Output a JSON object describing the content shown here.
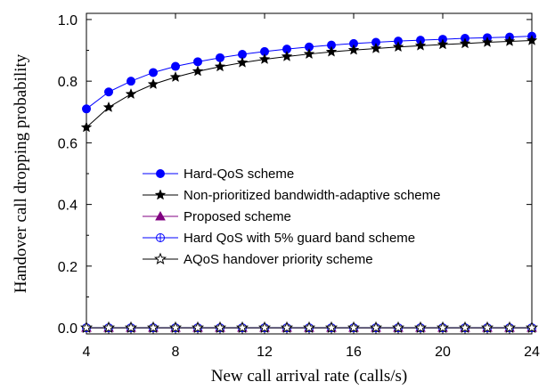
{
  "chart_data": {
    "type": "line",
    "xlabel": "New call arrival rate (calls/s)",
    "ylabel": "Handover call dropping probability",
    "xlim": [
      4,
      24
    ],
    "ylim": [
      -0.02,
      1.02
    ],
    "xticks": [
      4,
      8,
      12,
      16,
      20,
      24
    ],
    "yticks": [
      0.0,
      0.2,
      0.4,
      0.6,
      0.8,
      1.0
    ],
    "ytick_labels": [
      "0.0",
      "0.2",
      "0.4",
      "0.6",
      "0.8",
      "1.0"
    ],
    "grid": false,
    "legend_position": "center-right",
    "x": [
      4,
      5,
      6,
      7,
      8,
      9,
      10,
      11,
      12,
      13,
      14,
      15,
      16,
      17,
      18,
      19,
      20,
      21,
      22,
      23,
      24
    ],
    "series": [
      {
        "name": "Hard-QoS scheme",
        "color": "#0000ff",
        "marker": "filled-circle",
        "values": [
          0.71,
          0.765,
          0.8,
          0.828,
          0.848,
          0.863,
          0.876,
          0.887,
          0.896,
          0.904,
          0.911,
          0.917,
          0.922,
          0.926,
          0.93,
          0.933,
          0.936,
          0.939,
          0.941,
          0.943,
          0.946
        ]
      },
      {
        "name": "Non-prioritized bandwidth-adaptive scheme",
        "color": "#000000",
        "marker": "filled-star",
        "values": [
          0.65,
          0.715,
          0.758,
          0.79,
          0.813,
          0.832,
          0.847,
          0.86,
          0.871,
          0.88,
          0.888,
          0.895,
          0.901,
          0.906,
          0.911,
          0.915,
          0.919,
          0.922,
          0.926,
          0.929,
          0.932
        ]
      },
      {
        "name": "Proposed scheme",
        "color": "#800080",
        "marker": "filled-triangle",
        "values": [
          0,
          0,
          0,
          0,
          0,
          0,
          0,
          0,
          0,
          0,
          0,
          0,
          0,
          0,
          0,
          0,
          0,
          0,
          0,
          0,
          0
        ]
      },
      {
        "name": "Hard QoS with 5% guard band scheme",
        "color": "#0000ff",
        "marker": "circle-plus",
        "values": [
          0,
          0,
          0,
          0,
          0,
          0,
          0,
          0,
          0,
          0,
          0,
          0,
          0,
          0,
          0,
          0,
          0,
          0,
          0,
          0,
          0
        ]
      },
      {
        "name": "AQoS handover priority scheme",
        "color": "#000000",
        "marker": "open-star",
        "values": [
          0,
          0,
          0,
          0,
          0,
          0,
          0,
          0,
          0,
          0,
          0,
          0,
          0,
          0,
          0,
          0,
          0,
          0,
          0,
          0,
          0
        ]
      }
    ]
  }
}
